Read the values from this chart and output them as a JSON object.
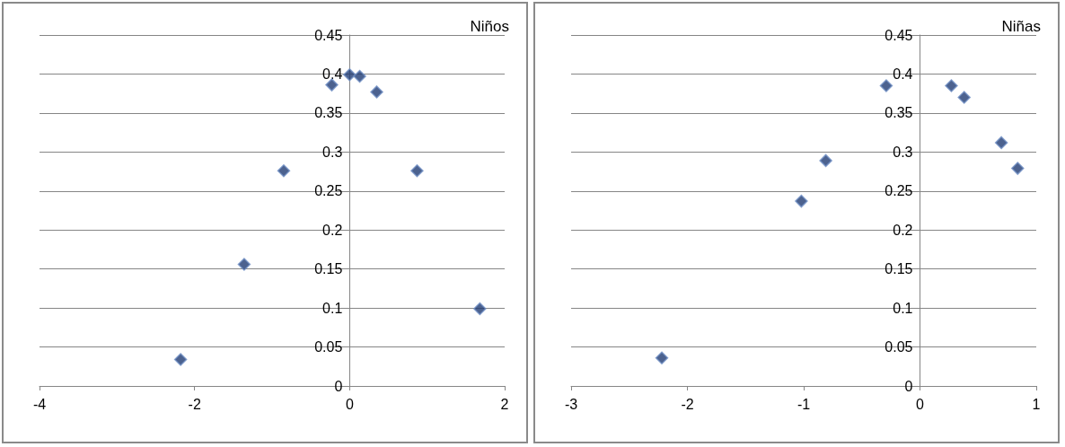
{
  "chart_data": [
    {
      "type": "scatter",
      "title": "Niños",
      "x": [
        -2.18,
        -1.36,
        -0.85,
        -0.23,
        0,
        0.13,
        0.35,
        0.87,
        1.68
      ],
      "series": [
        {
          "color": "#1f3b73",
          "values": [
            0.034,
            0.156,
            0.276,
            0.386,
            0.399,
            0.397,
            0.377,
            0.276,
            0.099
          ]
        }
      ],
      "xlim": [
        -4,
        2
      ],
      "xticks": [
        -4,
        -2,
        0,
        2
      ],
      "ylim": [
        0,
        0.45
      ],
      "yticks": [
        0,
        0.05,
        0.1,
        0.15,
        0.2,
        0.25,
        0.3,
        0.35,
        0.4,
        0.45
      ],
      "grid": "y",
      "marker": "diamond"
    },
    {
      "type": "scatter",
      "title": "Niñas",
      "x": [
        -2.22,
        -1.02,
        -0.81,
        -0.29,
        0.27,
        0.38,
        0.7,
        0.84
      ],
      "series": [
        {
          "color": "#1f3b73",
          "values": [
            0.036,
            0.237,
            0.289,
            0.385,
            0.385,
            0.37,
            0.312,
            0.279
          ]
        }
      ],
      "xlim": [
        -3,
        1
      ],
      "xticks": [
        -3,
        -2,
        -1,
        0,
        1
      ],
      "ylim": [
        0,
        0.45
      ],
      "yticks": [
        0,
        0.05,
        0.1,
        0.15,
        0.2,
        0.25,
        0.3,
        0.35,
        0.4,
        0.45
      ],
      "grid": "y",
      "marker": "diamond"
    }
  ]
}
